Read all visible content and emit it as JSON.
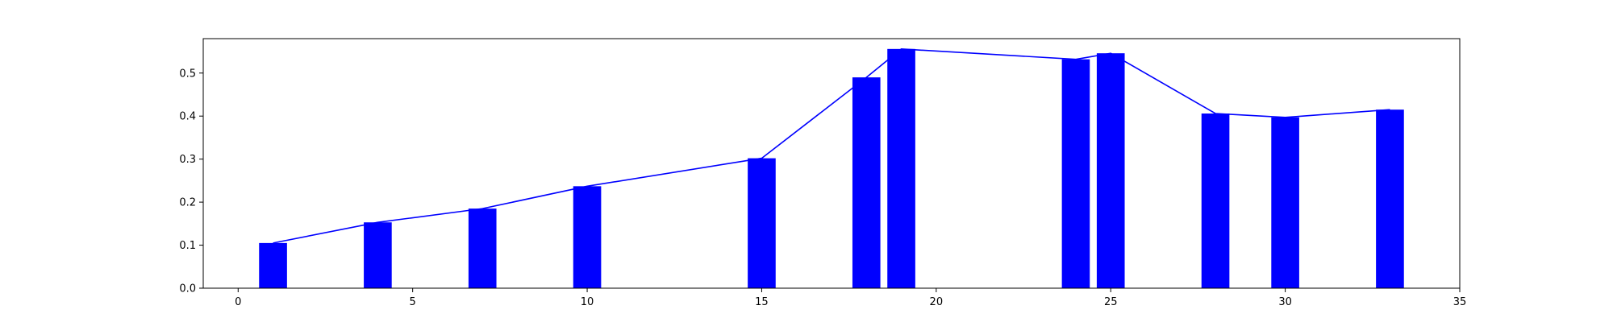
{
  "chart_data": {
    "type": "bar",
    "x": [
      1,
      4,
      7,
      10,
      15,
      18,
      19,
      24,
      25,
      28,
      30,
      33
    ],
    "values": [
      0.105,
      0.153,
      0.185,
      0.237,
      0.302,
      0.49,
      0.556,
      0.532,
      0.546,
      0.406,
      0.397,
      0.415
    ],
    "overlay": "line",
    "xlim": [
      -1,
      35
    ],
    "ylim": [
      0,
      0.58
    ],
    "xticks": [
      0,
      5,
      10,
      15,
      20,
      25,
      30,
      35
    ],
    "yticks": [
      0.0,
      0.1,
      0.2,
      0.3,
      0.4,
      0.5
    ],
    "xtick_labels": [
      "0",
      "5",
      "10",
      "15",
      "20",
      "25",
      "30",
      "35"
    ],
    "ytick_labels": [
      "0.0",
      "0.1",
      "0.2",
      "0.3",
      "0.4",
      "0.5"
    ],
    "bar_width": 0.8,
    "bar_color": "#0000ff",
    "line_color": "#0000ff",
    "title": "",
    "xlabel": "",
    "ylabel": "",
    "grid": false
  }
}
